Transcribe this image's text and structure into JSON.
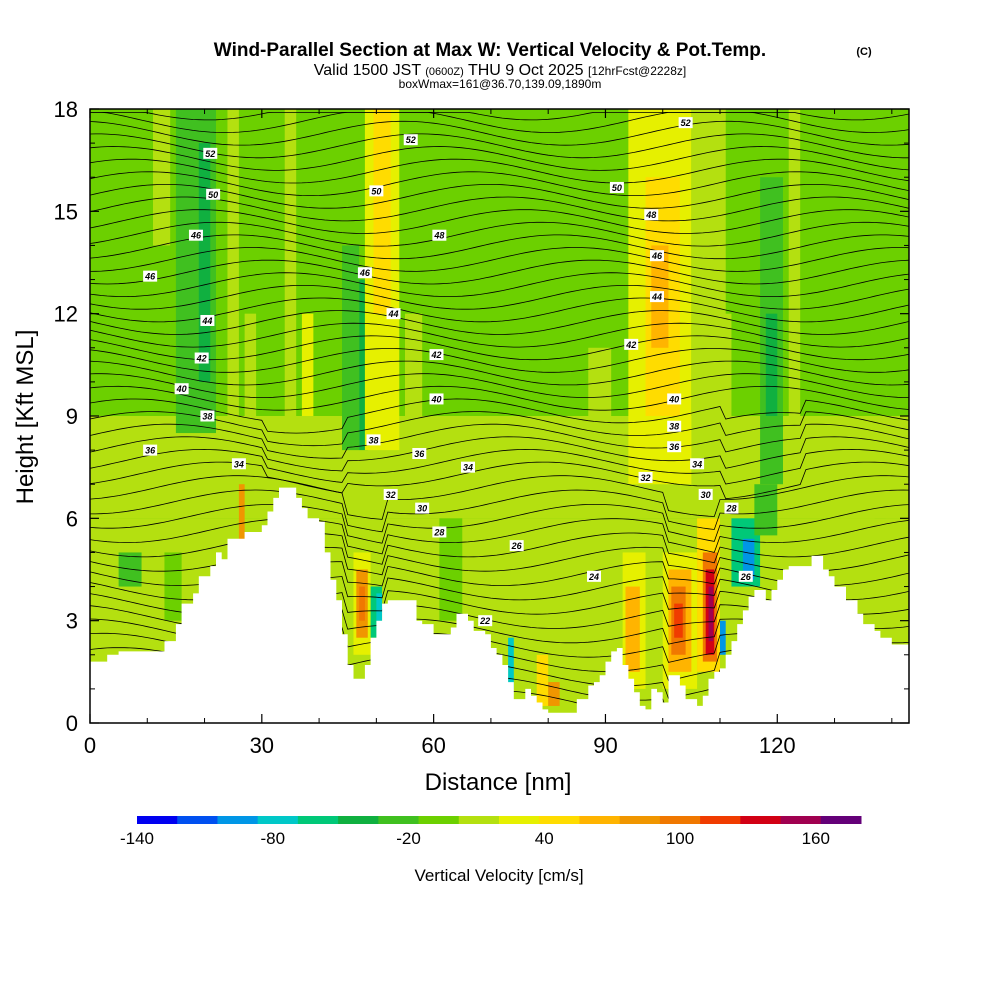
{
  "chart_data": {
    "type": "heatmap",
    "title": "Wind-Parallel Section at Max W: Vertical Velocity & Pot.Temp.",
    "title_mark": "(C)",
    "subtitle": {
      "valid_prefix": "Valid 1500 JST",
      "utc": "(0600Z)",
      "date": "THU 9 Oct 2025",
      "forecast": "[12hrFcst@2228z]"
    },
    "box_info": "boxWmax=161@36.70,139.09,1890m",
    "xlabel": "Distance [nm]",
    "ylabel": "Height [Kft MSL]",
    "xlim": [
      0,
      143
    ],
    "ylim": [
      0,
      18
    ],
    "x_ticks": [
      0,
      30,
      60,
      90,
      120
    ],
    "y_ticks": [
      0,
      3,
      6,
      9,
      12,
      15,
      18
    ],
    "colorbar": {
      "label": "Vertical Velocity [cm/s]",
      "range": [
        -140,
        180
      ],
      "step": 20,
      "tick_labels": [
        -140,
        -80,
        -20,
        40,
        100,
        160
      ],
      "colors": [
        "#0000f0",
        "#0050f0",
        "#0096e6",
        "#00c8c8",
        "#00c878",
        "#10b040",
        "#40c020",
        "#6cd000",
        "#b4e010",
        "#e6f000",
        "#ffdc00",
        "#ffb400",
        "#f09600",
        "#f07800",
        "#f03c00",
        "#d20014",
        "#a00050",
        "#640078"
      ]
    },
    "contours": {
      "variable": "potential temperature (C)",
      "labels": [
        {
          "x": 21,
          "y": 16.7,
          "v": "52"
        },
        {
          "x": 56,
          "y": 17.1,
          "v": "52"
        },
        {
          "x": 104,
          "y": 17.6,
          "v": "52"
        },
        {
          "x": 21.5,
          "y": 15.5,
          "v": "50"
        },
        {
          "x": 50,
          "y": 15.6,
          "v": "50"
        },
        {
          "x": 92,
          "y": 15.7,
          "v": "50"
        },
        {
          "x": 98,
          "y": 14.9,
          "v": "48"
        },
        {
          "x": 61,
          "y": 14.3,
          "v": "48"
        },
        {
          "x": 18.5,
          "y": 14.3,
          "v": "46"
        },
        {
          "x": 10.5,
          "y": 13.1,
          "v": "46"
        },
        {
          "x": 48,
          "y": 13.2,
          "v": "46"
        },
        {
          "x": 99,
          "y": 13.7,
          "v": "46"
        },
        {
          "x": 20.5,
          "y": 11.8,
          "v": "44"
        },
        {
          "x": 53,
          "y": 12.0,
          "v": "44"
        },
        {
          "x": 99,
          "y": 12.5,
          "v": "44"
        },
        {
          "x": 19.5,
          "y": 10.7,
          "v": "42"
        },
        {
          "x": 60.5,
          "y": 10.8,
          "v": "42"
        },
        {
          "x": 94.5,
          "y": 11.1,
          "v": "42"
        },
        {
          "x": 16,
          "y": 9.8,
          "v": "40"
        },
        {
          "x": 60.5,
          "y": 9.5,
          "v": "40"
        },
        {
          "x": 102,
          "y": 9.5,
          "v": "40"
        },
        {
          "x": 20.5,
          "y": 9.0,
          "v": "38"
        },
        {
          "x": 49.5,
          "y": 8.3,
          "v": "38"
        },
        {
          "x": 102,
          "y": 8.7,
          "v": "38"
        },
        {
          "x": 10.5,
          "y": 8.0,
          "v": "36"
        },
        {
          "x": 57.5,
          "y": 7.9,
          "v": "36"
        },
        {
          "x": 102,
          "y": 8.1,
          "v": "36"
        },
        {
          "x": 26,
          "y": 7.6,
          "v": "34"
        },
        {
          "x": 66,
          "y": 7.5,
          "v": "34"
        },
        {
          "x": 106,
          "y": 7.6,
          "v": "34"
        },
        {
          "x": 52.5,
          "y": 6.7,
          "v": "32"
        },
        {
          "x": 97,
          "y": 7.2,
          "v": "32"
        },
        {
          "x": 58,
          "y": 6.3,
          "v": "30"
        },
        {
          "x": 107.5,
          "y": 6.7,
          "v": "30"
        },
        {
          "x": 61,
          "y": 5.6,
          "v": "28"
        },
        {
          "x": 112,
          "y": 6.3,
          "v": "28"
        },
        {
          "x": 74.5,
          "y": 5.2,
          "v": "26"
        },
        {
          "x": 114.5,
          "y": 4.3,
          "v": "26"
        },
        {
          "x": 88,
          "y": 4.3,
          "v": "24"
        },
        {
          "x": 69,
          "y": 3.0,
          "v": "22"
        }
      ]
    },
    "terrain_height_kft": [
      [
        0,
        1.8
      ],
      [
        3,
        2.0
      ],
      [
        5,
        2.1
      ],
      [
        10,
        2.1
      ],
      [
        13,
        2.4
      ],
      [
        15,
        2.9
      ],
      [
        16,
        3.5
      ],
      [
        18,
        3.8
      ],
      [
        19,
        4.3
      ],
      [
        21,
        4.6
      ],
      [
        22,
        5.0
      ],
      [
        23,
        4.8
      ],
      [
        24,
        5.4
      ],
      [
        26,
        5.4
      ],
      [
        27,
        5.6
      ],
      [
        29,
        5.6
      ],
      [
        30,
        5.8
      ],
      [
        31,
        6.2
      ],
      [
        32,
        6.6
      ],
      [
        33,
        6.9
      ],
      [
        35,
        6.9
      ],
      [
        36,
        6.6
      ],
      [
        37,
        6.3
      ],
      [
        38,
        6.0
      ],
      [
        40,
        5.9
      ],
      [
        41,
        5.0
      ],
      [
        42,
        4.2
      ],
      [
        43,
        3.6
      ],
      [
        44,
        2.6
      ],
      [
        45,
        1.7
      ],
      [
        46,
        1.3
      ],
      [
        47,
        1.3
      ],
      [
        48,
        1.7
      ],
      [
        49,
        2.5
      ],
      [
        50,
        3.0
      ],
      [
        51,
        3.5
      ],
      [
        52,
        3.6
      ],
      [
        56,
        3.6
      ],
      [
        57,
        3.0
      ],
      [
        58,
        2.9
      ],
      [
        60,
        2.6
      ],
      [
        61,
        2.6
      ],
      [
        63,
        2.8
      ],
      [
        64,
        3.2
      ],
      [
        66,
        3.0
      ],
      [
        67,
        2.7
      ],
      [
        69,
        2.6
      ],
      [
        70,
        2.2
      ],
      [
        71,
        2.0
      ],
      [
        72,
        1.7
      ],
      [
        73,
        1.2
      ],
      [
        74,
        0.7
      ],
      [
        76,
        1.0
      ],
      [
        77,
        0.8
      ],
      [
        78,
        0.6
      ],
      [
        79,
        0.4
      ],
      [
        80,
        0.3
      ],
      [
        84,
        0.3
      ],
      [
        85,
        0.7
      ],
      [
        87,
        1.1
      ],
      [
        88,
        1.2
      ],
      [
        89,
        1.4
      ],
      [
        90,
        1.8
      ],
      [
        91,
        2.1
      ],
      [
        92,
        2.2
      ],
      [
        93,
        1.7
      ],
      [
        94,
        1.3
      ],
      [
        95,
        0.9
      ],
      [
        96,
        0.5
      ],
      [
        97,
        0.4
      ],
      [
        98,
        1.0
      ],
      [
        99,
        0.9
      ],
      [
        100,
        0.6
      ],
      [
        101,
        1.4
      ],
      [
        102,
        1.4
      ],
      [
        103,
        1.1
      ],
      [
        104,
        0.7
      ],
      [
        106,
        0.5
      ],
      [
        107,
        0.8
      ],
      [
        108,
        1.3
      ],
      [
        109,
        1.5
      ],
      [
        110,
        1.6
      ],
      [
        111,
        2.0
      ],
      [
        112,
        2.4
      ],
      [
        113,
        2.9
      ],
      [
        114,
        3.3
      ],
      [
        115,
        3.7
      ],
      [
        116,
        3.9
      ],
      [
        117,
        3.9
      ],
      [
        118,
        3.6
      ],
      [
        119,
        3.9
      ],
      [
        120,
        4.2
      ],
      [
        121,
        4.5
      ],
      [
        122,
        4.6
      ],
      [
        125,
        4.6
      ],
      [
        126,
        4.9
      ],
      [
        127,
        4.9
      ],
      [
        128,
        4.5
      ],
      [
        129,
        4.3
      ],
      [
        130,
        4.0
      ],
      [
        132,
        3.6
      ],
      [
        134,
        3.2
      ],
      [
        135,
        2.9
      ],
      [
        137,
        2.7
      ],
      [
        138,
        2.5
      ],
      [
        140,
        2.3
      ],
      [
        143,
        2.3
      ]
    ]
  }
}
